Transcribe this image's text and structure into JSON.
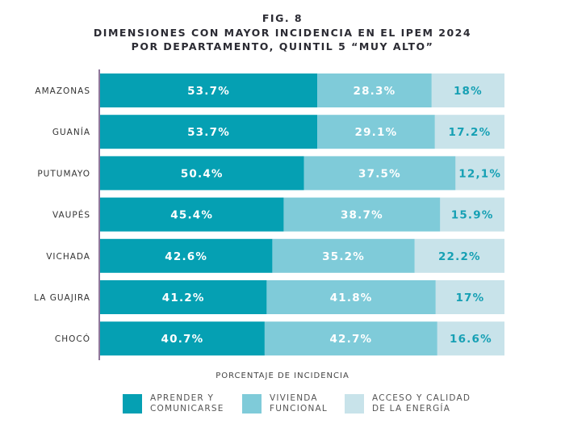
{
  "chart_data": {
    "type": "bar",
    "orientation": "horizontal",
    "stacked": true,
    "title": "FIG. 8",
    "subtitle": [
      "DIMENSIONES CON MAYOR INCIDENCIA EN EL IPEM 2024",
      "POR DEPARTAMENTO, QUINTIL 5 “MUY ALTO”"
    ],
    "xlabel": "PORCENTAJE DE INCIDENCIA",
    "categories": [
      "AMAZONAS",
      "GUANÍA",
      "PUTUMAYO",
      "VAUPÉS",
      "VICHADA",
      "LA GUAJIRA",
      "CHOCÓ"
    ],
    "series": [
      {
        "name": "APRENDER Y COMUNICARSE",
        "legend_lines": [
          "APRENDER Y",
          "COMUNICARSE"
        ],
        "color": "#05a0b3",
        "label_color": "#ffffff",
        "values": [
          53.7,
          53.7,
          50.4,
          45.4,
          42.6,
          41.2,
          40.7
        ],
        "labels": [
          "53.7%",
          "53.7%",
          "50.4%",
          "45.4%",
          "42.6%",
          "41.2%",
          "40.7%"
        ]
      },
      {
        "name": "VIVIENDA FUNCIONAL",
        "legend_lines": [
          "VIVIENDA",
          "FUNCIONAL"
        ],
        "color": "#7fcbd9",
        "label_color": "#ffffff",
        "values": [
          28.3,
          29.1,
          37.5,
          38.7,
          35.2,
          41.8,
          42.7
        ],
        "labels": [
          "28.3%",
          "29.1%",
          "37.5%",
          "38.7%",
          "35.2%",
          "41.8%",
          "42.7%"
        ]
      },
      {
        "name": "ACCESO Y CALIDAD DE LA ENERGÍA",
        "legend_lines": [
          "ACCESO Y CALIDAD",
          "DE LA ENERGÍA"
        ],
        "color": "#c8e3ea",
        "label_color": "#16a0b4",
        "values": [
          18,
          17.2,
          12.1,
          15.9,
          22.2,
          17,
          16.6
        ],
        "labels": [
          "18%",
          "17.2%",
          "12,1%",
          "15.9%",
          "22.2%",
          "17%",
          "16.6%"
        ]
      }
    ],
    "xlim": [
      0,
      100
    ],
    "grid": false,
    "legend_position": "bottom"
  }
}
